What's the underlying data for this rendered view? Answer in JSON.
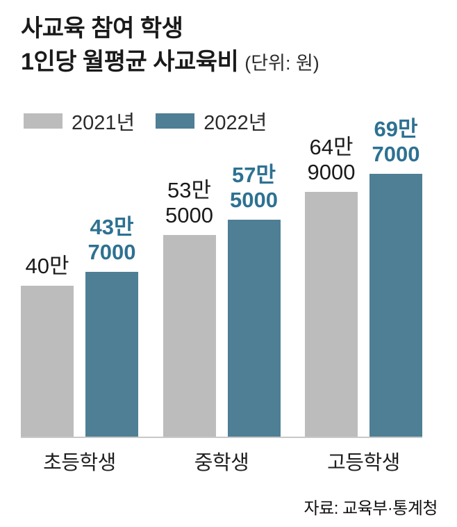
{
  "title": {
    "line1": "사교육 참여 학생",
    "line2": "1인당 월평균 사교육비",
    "unit": "(단위: 원)"
  },
  "legend": [
    {
      "label": "2021년",
      "color": "#bcbcbc"
    },
    {
      "label": "2022년",
      "color": "#4e7f95"
    }
  ],
  "source": "자료: 교육부·통계청",
  "chart_data": {
    "type": "bar",
    "title": "사교육 참여 학생 1인당 월평균 사교육비",
    "unit": "원",
    "categories": [
      "초등학생",
      "중학생",
      "고등학생"
    ],
    "series": [
      {
        "name": "2021년",
        "values": [
          400000,
          535000,
          649000
        ],
        "value_labels": [
          [
            "40만"
          ],
          [
            "53만",
            "5000"
          ],
          [
            "64만",
            "9000"
          ]
        ],
        "color": "#bcbcbc",
        "label_color": "#1a1a1a"
      },
      {
        "name": "2022년",
        "values": [
          437000,
          575000,
          697000
        ],
        "value_labels": [
          [
            "43만",
            "7000"
          ],
          [
            "57만",
            "5000"
          ],
          [
            "69만",
            "7000"
          ]
        ],
        "color": "#4e7f95",
        "label_color": "#2e7192"
      }
    ],
    "ylim": [
      0,
      700000
    ],
    "grid": false,
    "legend_position": "top-left"
  }
}
